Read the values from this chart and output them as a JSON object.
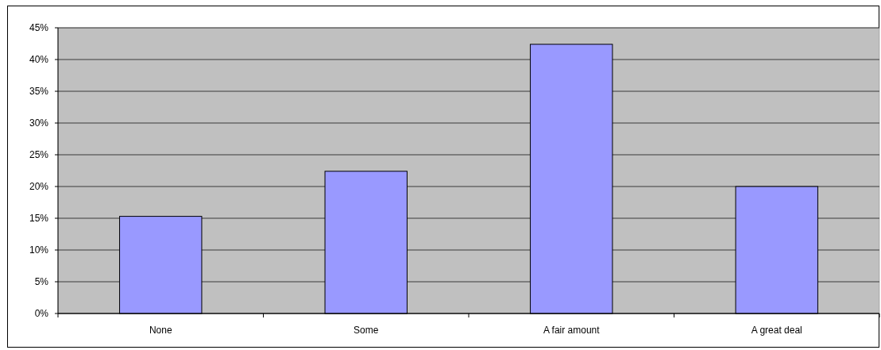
{
  "chart_data": {
    "type": "bar",
    "categories": [
      "None",
      "Some",
      "A fair amount",
      "A great deal"
    ],
    "values": [
      15.3,
      22.4,
      42.4,
      20.0
    ],
    "color": "#9999ff",
    "ylim": [
      0,
      45
    ],
    "yticks": [
      {
        "value": 0,
        "label": "0%"
      },
      {
        "value": 5,
        "label": "5%"
      },
      {
        "value": 10,
        "label": "10%"
      },
      {
        "value": 15,
        "label": "15%"
      },
      {
        "value": 20,
        "label": "20%"
      },
      {
        "value": 25,
        "label": "25%"
      },
      {
        "value": 30,
        "label": "30%"
      },
      {
        "value": 35,
        "label": "35%"
      },
      {
        "value": 40,
        "label": "40%"
      },
      {
        "value": 45,
        "label": "45%"
      }
    ],
    "grid": "y"
  }
}
